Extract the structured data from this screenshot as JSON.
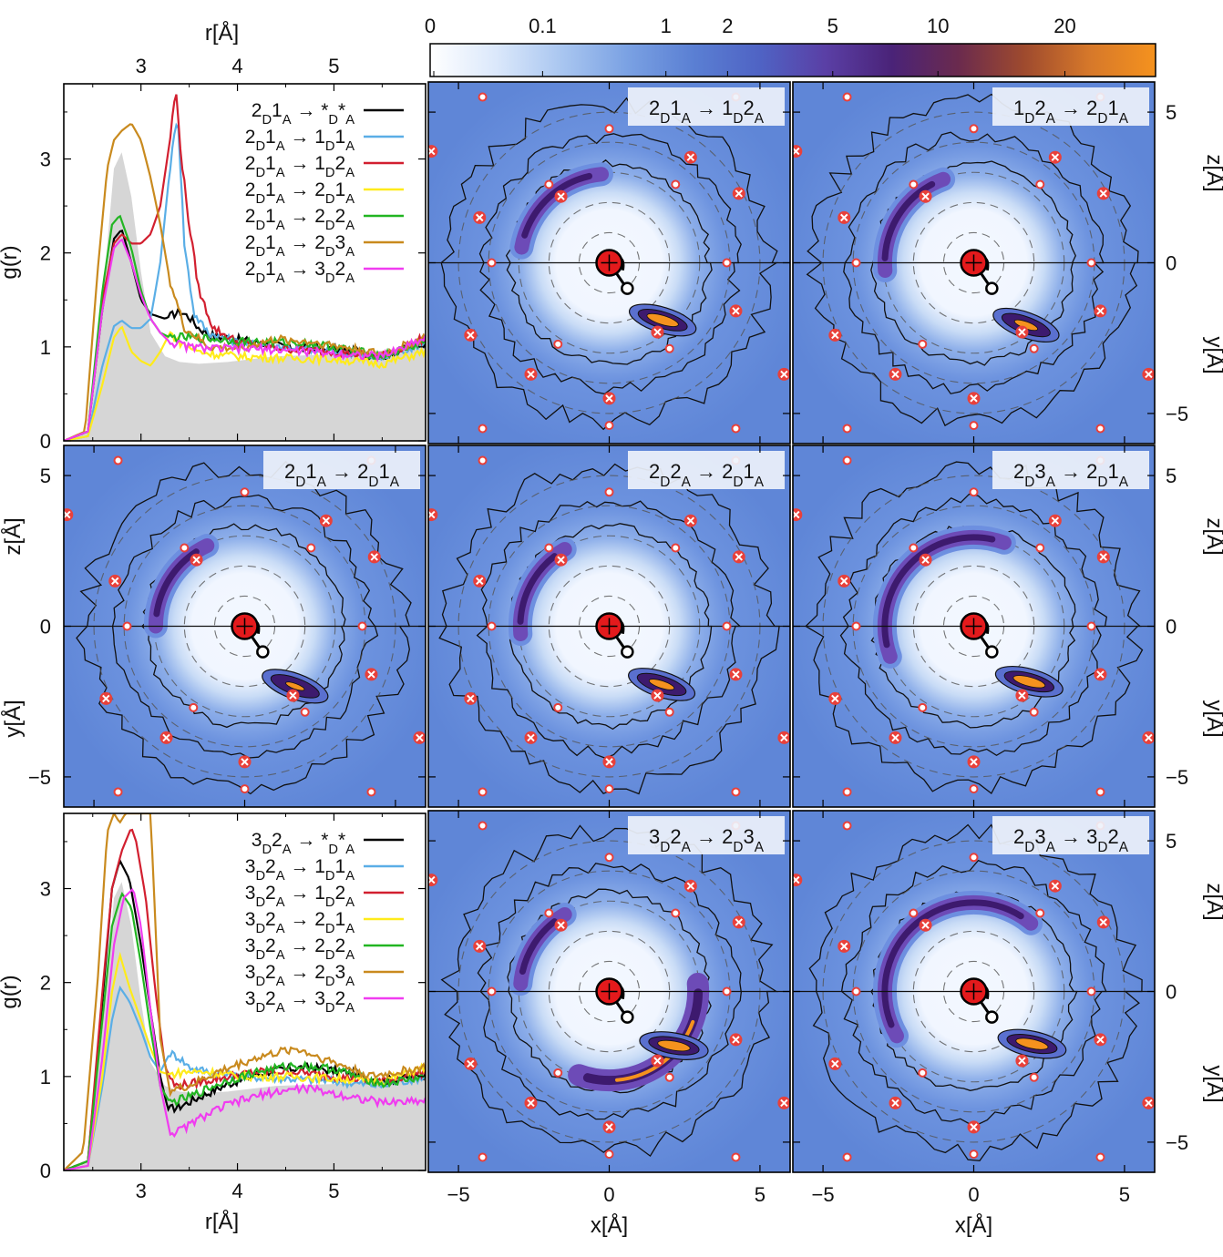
{
  "colors": {
    "gray_fill": "#d6d6d6",
    "map_outer": "#5f86d7",
    "map_inner": "#f3f8ff",
    "band_dark": "#3d1a6e",
    "band_mid": "#6d4bb7",
    "hot": "#f5921e",
    "atom_red": "#e41a1c",
    "marker_red": "#e8403a"
  },
  "colorbar": {
    "ticks": [
      "0",
      "0.1",
      "1",
      "2",
      "5",
      "10",
      "20"
    ],
    "tick_values": [
      0,
      0.1,
      1,
      2,
      5,
      10,
      20
    ],
    "stops": [
      "#ffffff",
      "#dbe8fb",
      "#a9c6f0",
      "#7aa1e3",
      "#5a7fd3",
      "#4f63c4",
      "#5a3fa5",
      "#4a2378",
      "#6a2a4e",
      "#9e4a2e",
      "#d6782a",
      "#f5921e"
    ]
  },
  "chart_data": [
    {
      "type": "line",
      "id": "gr_top",
      "ylabel": "g(r)",
      "top_axis_label": "r[Å]",
      "xlim": [
        2.2,
        5.95
      ],
      "ylim": [
        0,
        3.8
      ],
      "xticks": [
        3,
        4,
        5
      ],
      "xtick_labels": [
        "3",
        "4",
        "5"
      ],
      "yticks": [
        0,
        1,
        2,
        3
      ],
      "ytick_labels": [
        "0",
        "1",
        "2",
        "3"
      ],
      "background": {
        "name": "reference",
        "x": [
          2.2,
          2.45,
          2.6,
          2.72,
          2.8,
          2.9,
          3.0,
          3.1,
          3.25,
          3.4,
          3.6,
          3.9,
          4.4,
          5.0,
          5.5,
          5.95
        ],
        "y": [
          0,
          0.1,
          1.5,
          2.9,
          3.07,
          2.6,
          1.8,
          1.15,
          0.9,
          0.84,
          0.82,
          0.84,
          0.9,
          0.92,
          0.96,
          1.03
        ]
      },
      "series": [
        {
          "name": "2D1A → *D*A",
          "color": "#000000",
          "x": [
            2.2,
            2.45,
            2.6,
            2.72,
            2.8,
            2.9,
            3.0,
            3.1,
            3.25,
            3.4,
            3.5,
            3.6,
            3.75,
            4.0,
            4.5,
            5.0,
            5.5,
            5.95
          ],
          "y": [
            0,
            0.1,
            1.4,
            2.15,
            2.25,
            1.9,
            1.5,
            1.35,
            1.3,
            1.38,
            1.32,
            1.2,
            1.12,
            1.08,
            1.0,
            0.97,
            0.9,
            1.05
          ]
        },
        {
          "name": "2D1A → 1D1A",
          "color": "#5aaee6",
          "x": [
            2.2,
            2.45,
            2.6,
            2.72,
            2.8,
            2.9,
            3.0,
            3.1,
            3.2,
            3.3,
            3.38,
            3.45,
            3.55,
            3.7,
            4.0,
            4.5,
            5.0,
            5.5,
            5.95
          ],
          "y": [
            0,
            0.05,
            0.8,
            1.22,
            1.28,
            1.2,
            1.2,
            1.3,
            1.9,
            2.9,
            3.5,
            2.1,
            1.35,
            1.15,
            1.05,
            1.0,
            0.95,
            0.88,
            1.05
          ]
        },
        {
          "name": "2D1A → 1D2A",
          "color": "#d21f2f",
          "x": [
            2.2,
            2.45,
            2.6,
            2.72,
            2.8,
            2.9,
            3.0,
            3.1,
            3.2,
            3.3,
            3.36,
            3.42,
            3.5,
            3.6,
            3.75,
            4.0,
            4.5,
            5.0,
            5.5,
            5.95
          ],
          "y": [
            0,
            0.1,
            1.5,
            2.1,
            2.2,
            2.1,
            2.1,
            2.2,
            2.5,
            3.2,
            3.75,
            3.0,
            2.3,
            1.6,
            1.2,
            1.05,
            0.98,
            0.95,
            0.9,
            1.1
          ]
        },
        {
          "name": "2D1A → 2D1A",
          "color": "#ffeb1a",
          "x": [
            2.2,
            2.45,
            2.6,
            2.72,
            2.8,
            2.9,
            3.0,
            3.1,
            3.2,
            3.3,
            3.4,
            3.6,
            3.8,
            4.0,
            4.5,
            5.0,
            5.5,
            5.95
          ],
          "y": [
            0,
            0.05,
            0.6,
            1.1,
            1.22,
            0.95,
            0.85,
            0.8,
            0.95,
            1.15,
            1.05,
            0.95,
            0.92,
            0.9,
            0.88,
            0.87,
            0.82,
            0.95
          ]
        },
        {
          "name": "2D1A → 2D2A",
          "color": "#22b522",
          "x": [
            2.2,
            2.45,
            2.6,
            2.7,
            2.78,
            2.9,
            3.0,
            3.1,
            3.2,
            3.3,
            3.5,
            3.8,
            4.2,
            4.6,
            5.0,
            5.5,
            5.95
          ],
          "y": [
            0,
            0.1,
            1.6,
            2.3,
            2.4,
            2.05,
            1.6,
            1.3,
            1.15,
            1.1,
            1.1,
            1.08,
            1.05,
            1.05,
            1.0,
            0.9,
            1.05
          ]
        },
        {
          "name": "2D1A → 2D3A",
          "color": "#c98a1e",
          "x": [
            2.2,
            2.42,
            2.55,
            2.65,
            2.72,
            2.8,
            2.9,
            3.0,
            3.1,
            3.2,
            3.3,
            3.45,
            3.7,
            4.0,
            4.4,
            4.8,
            5.2,
            5.5,
            5.95
          ],
          "y": [
            0,
            0.1,
            1.8,
            2.9,
            3.2,
            3.3,
            3.38,
            3.2,
            2.8,
            2.3,
            1.7,
            1.2,
            1.0,
            0.98,
            1.08,
            1.05,
            0.98,
            0.92,
            1.1
          ]
        },
        {
          "name": "2D1A → 3D2A",
          "color": "#f03cf0",
          "x": [
            2.2,
            2.45,
            2.6,
            2.72,
            2.8,
            2.9,
            3.0,
            3.1,
            3.2,
            3.3,
            3.5,
            3.8,
            4.2,
            4.6,
            5.0,
            5.5,
            5.95
          ],
          "y": [
            0,
            0.1,
            1.4,
            2.05,
            2.15,
            1.9,
            1.55,
            1.3,
            1.15,
            1.05,
            1.0,
            0.98,
            0.98,
            0.96,
            0.93,
            0.9,
            1.1
          ]
        }
      ]
    },
    {
      "type": "line",
      "id": "gr_bottom",
      "ylabel": "g(r)",
      "xlabel": "r[Å]",
      "xlim": [
        2.2,
        5.95
      ],
      "ylim": [
        0,
        3.8
      ],
      "xticks": [
        3,
        4,
        5
      ],
      "xtick_labels": [
        "3",
        "4",
        "5"
      ],
      "yticks": [
        0,
        1,
        2,
        3
      ],
      "ytick_labels": [
        "0",
        "1",
        "2",
        "3"
      ],
      "background": {
        "name": "reference",
        "x": [
          2.2,
          2.45,
          2.6,
          2.72,
          2.8,
          2.9,
          3.0,
          3.1,
          3.25,
          3.4,
          3.6,
          3.9,
          4.4,
          5.0,
          5.5,
          5.95
        ],
        "y": [
          0,
          0.1,
          1.5,
          2.9,
          3.07,
          2.6,
          1.8,
          1.15,
          0.9,
          0.84,
          0.82,
          0.84,
          0.9,
          0.92,
          0.96,
          1.03
        ]
      },
      "series": [
        {
          "name": "3D2A → *D*A",
          "color": "#000000",
          "x": [
            2.2,
            2.45,
            2.6,
            2.7,
            2.78,
            2.88,
            3.0,
            3.1,
            3.2,
            3.28,
            3.4,
            3.6,
            3.9,
            4.3,
            4.7,
            5.1,
            5.5,
            5.95
          ],
          "y": [
            0,
            0.1,
            1.8,
            3.0,
            3.3,
            3.1,
            2.4,
            1.7,
            1.0,
            0.65,
            0.68,
            0.78,
            0.92,
            1.05,
            1.1,
            1.05,
            0.95,
            1.02
          ]
        },
        {
          "name": "3D2A → 1D1A",
          "color": "#5aaee6",
          "x": [
            2.2,
            2.45,
            2.6,
            2.7,
            2.78,
            2.88,
            3.0,
            3.1,
            3.2,
            3.3,
            3.4,
            3.5,
            3.7,
            4.0,
            4.5,
            5.0,
            5.5,
            5.95
          ],
          "y": [
            0,
            0.05,
            0.9,
            1.6,
            1.95,
            1.8,
            1.5,
            1.2,
            1.05,
            1.25,
            1.2,
            1.1,
            1.05,
            1.0,
            0.98,
            0.95,
            0.9,
            1.0
          ]
        },
        {
          "name": "3D2A → 1D2A",
          "color": "#d21f2f",
          "x": [
            2.2,
            2.45,
            2.6,
            2.7,
            2.8,
            2.9,
            2.95,
            3.05,
            3.15,
            3.25,
            3.35,
            3.5,
            3.8,
            4.2,
            4.6,
            5.0,
            5.5,
            5.95
          ],
          "y": [
            0,
            0.1,
            1.9,
            3.0,
            3.4,
            3.65,
            3.5,
            2.9,
            1.9,
            1.1,
            0.9,
            0.92,
            0.98,
            1.05,
            1.05,
            1.0,
            0.95,
            1.05
          ]
        },
        {
          "name": "3D2A → 2D1A",
          "color": "#ffeb1a",
          "x": [
            2.2,
            2.45,
            2.6,
            2.7,
            2.78,
            2.88,
            3.0,
            3.1,
            3.2,
            3.3,
            3.45,
            3.7,
            4.0,
            4.5,
            5.0,
            5.5,
            5.95
          ],
          "y": [
            0,
            0.05,
            1.0,
            1.9,
            2.3,
            1.95,
            1.6,
            1.3,
            1.05,
            1.02,
            1.05,
            1.05,
            1.0,
            1.0,
            0.98,
            0.95,
            1.1
          ]
        },
        {
          "name": "3D2A → 2D2A",
          "color": "#22b522",
          "x": [
            2.2,
            2.45,
            2.6,
            2.7,
            2.8,
            2.9,
            3.0,
            3.1,
            3.2,
            3.3,
            3.5,
            3.8,
            4.2,
            4.6,
            5.0,
            5.5,
            5.95
          ],
          "y": [
            0,
            0.1,
            1.6,
            2.6,
            2.95,
            2.8,
            2.2,
            1.5,
            0.9,
            0.72,
            0.78,
            0.92,
            1.05,
            1.12,
            1.08,
            0.92,
            1.0
          ]
        },
        {
          "name": "3D2A → 2D3A",
          "color": "#c98a1e",
          "x": [
            2.2,
            2.4,
            2.55,
            2.65,
            2.72,
            2.78,
            2.84,
            2.9,
            3.0,
            3.1,
            3.2,
            3.3,
            3.5,
            3.8,
            4.2,
            4.6,
            5.0,
            5.4,
            5.95
          ],
          "y": [
            0,
            0.2,
            2.0,
            3.6,
            3.8,
            3.7,
            3.8,
            3.8,
            3.8,
            3.8,
            1.4,
            0.85,
            0.9,
            1.05,
            1.2,
            1.3,
            1.15,
            1.0,
            1.1
          ]
        },
        {
          "name": "3D2A → 3D2A",
          "color": "#f03cf0",
          "x": [
            2.2,
            2.45,
            2.6,
            2.72,
            2.82,
            2.92,
            3.0,
            3.1,
            3.2,
            3.3,
            3.4,
            3.6,
            3.9,
            4.3,
            4.7,
            5.1,
            5.5,
            5.95
          ],
          "y": [
            0,
            0.05,
            1.2,
            2.4,
            2.9,
            3.0,
            2.6,
            1.7,
            0.9,
            0.4,
            0.42,
            0.55,
            0.7,
            0.82,
            0.88,
            0.8,
            0.72,
            0.75
          ]
        }
      ]
    },
    {
      "type": "heatmap",
      "id": "density_maps",
      "xlabel": "x[Å]",
      "ylabel_xz": "z[Å]",
      "ylabel_xy": "y[Å]",
      "xlim": [
        -6,
        6
      ],
      "ylim": [
        -6,
        6
      ],
      "xticks": [
        -5,
        0,
        5
      ],
      "xtick_labels": [
        "−5",
        "0",
        "5"
      ],
      "yticks": [
        -5,
        0,
        5
      ],
      "ytick_labels": [
        "−5",
        "0",
        "5"
      ],
      "colorbar_label_values": [
        0,
        0.1,
        1,
        2,
        5,
        10,
        20
      ],
      "panels": [
        {
          "title_html": "2<sub>D</sub>1<sub>A</sub> → 1<sub>D</sub>2<sub>A</sub>",
          "title": "2D1A → 1D2A",
          "row": 0,
          "col": 1,
          "band_arc": [
            95,
            170
          ],
          "spot_angle": -47,
          "spot_r": 2.6,
          "spot_strength": 1.0
        },
        {
          "title_html": "1<sub>D</sub>2<sub>A</sub> → 2<sub>D</sub>1<sub>A</sub>",
          "title": "1D2A → 2D1A",
          "row": 0,
          "col": 2,
          "band_arc": [
            110,
            185
          ],
          "spot_angle": -50,
          "spot_r": 2.7,
          "spot_strength": 0.75
        },
        {
          "title_html": "2<sub>D</sub>1<sub>A</sub> → 2<sub>D</sub>1<sub>A</sub>",
          "title": "2D1A → 2D1A",
          "row": 1,
          "col": 0,
          "band_arc": [
            115,
            180
          ],
          "spot_angle": -50,
          "spot_r": 2.6,
          "spot_strength": 0.6
        },
        {
          "title_html": "2<sub>D</sub>2<sub>A</sub> → 2<sub>D</sub>1<sub>A</sub>",
          "title": "2D2A → 2D1A",
          "row": 1,
          "col": 1,
          "band_arc": [
            120,
            185
          ],
          "spot_angle": -48,
          "spot_r": 2.6,
          "spot_strength": 0.8
        },
        {
          "title_html": "2<sub>D</sub>3<sub>A</sub> → 2<sub>D</sub>1<sub>A</sub>",
          "title": "2D3A → 2D1A",
          "row": 1,
          "col": 2,
          "band_arc": [
            70,
            200
          ],
          "spot_angle": -45,
          "spot_r": 2.6,
          "spot_strength": 1.0
        },
        {
          "title_html": "3<sub>D</sub>2<sub>A</sub> → 2<sub>D</sub>3<sub>A</sub>",
          "title": "3D2A → 2D3A",
          "row": 2,
          "col": 1,
          "band_arc": [
            120,
            175
          ],
          "spot_angle": -40,
          "spot_r": 2.8,
          "spot_strength": 1.0,
          "lower_arc": [
            -110,
            5
          ]
        },
        {
          "title_html": "2<sub>D</sub>3<sub>A</sub> → 3<sub>D</sub>2<sub>A</sub>",
          "title": "2D3A → 3D2A",
          "row": 2,
          "col": 2,
          "band_arc": [
            50,
            210
          ],
          "spot_angle": -42,
          "spot_r": 2.6,
          "spot_strength": 1.0
        }
      ]
    }
  ]
}
